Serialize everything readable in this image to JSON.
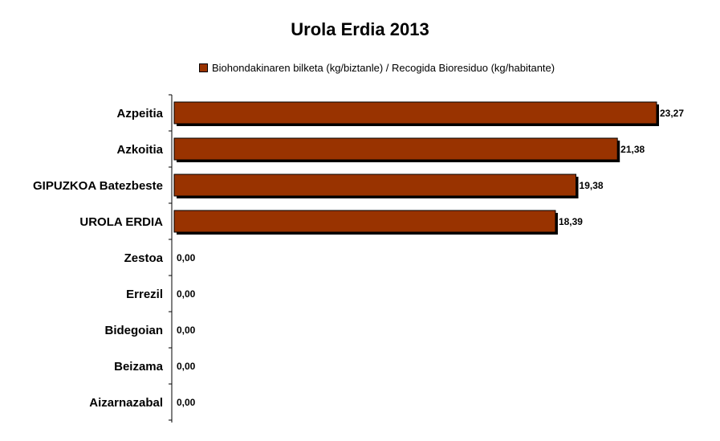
{
  "chart_data": {
    "type": "bar",
    "orientation": "horizontal",
    "title": "Urola Erdia 2013",
    "categories": [
      "Azpeitia",
      "Azkoitia",
      "GIPUZKOA Batezbeste",
      "UROLA ERDIA",
      "Zestoa",
      "Errezil",
      "Bidegoian",
      "Beizama",
      "Aizarnazabal"
    ],
    "series": [
      {
        "name": "Biohondakinaren bilketa (kg/biztanle) / Recogida Bioresiduo (kg/habitante)",
        "values": [
          23.27,
          21.38,
          19.38,
          18.39,
          0,
          0,
          0,
          0,
          0
        ],
        "labels": [
          "23,27",
          "21,38",
          "19,38",
          "18,39",
          "0,00",
          "0,00",
          "0,00",
          "0,00",
          "0,00"
        ],
        "color": "#993300"
      }
    ],
    "xlim": [
      0,
      23.27
    ],
    "grid": false,
    "legend_position": "top"
  }
}
